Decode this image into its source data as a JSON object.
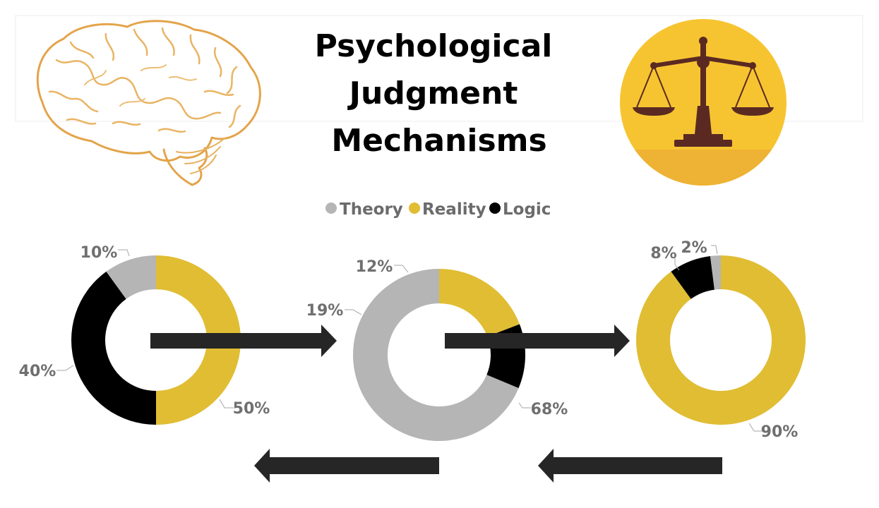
{
  "title_lines": [
    "Psychological",
    "Judgment",
    "Mechanisms"
  ],
  "colors": {
    "Theory": "#b5b5b5",
    "Reality": "#e0bd33",
    "Logic": "#000000",
    "arrow": "#262626",
    "brain": "#e3a44a",
    "scale_bg": "#f7c431",
    "scale_base": "#eeb234",
    "scale_ink": "#5a2a22"
  },
  "icons": [
    "brain-outline-icon",
    "balance-scale-icon"
  ],
  "chart_data": [
    {
      "type": "pie",
      "variant": "donut",
      "categories": [
        "Theory",
        "Reality",
        "Logic"
      ],
      "series": [
        {
          "values": [
            10,
            50,
            40
          ]
        }
      ],
      "labels": [
        "10%",
        "50%",
        "40%"
      ],
      "legend": {
        "entries": [
          "Theory",
          "Reality",
          "Logic"
        ],
        "position": "top"
      }
    },
    {
      "type": "pie",
      "variant": "donut",
      "categories": [
        "Theory",
        "Reality",
        "Logic"
      ],
      "series": [
        {
          "values": [
            68,
            19,
            12
          ]
        }
      ],
      "labels": [
        "68%",
        "19%",
        "12%"
      ]
    },
    {
      "type": "pie",
      "variant": "donut",
      "categories": [
        "Theory",
        "Reality",
        "Logic"
      ],
      "series": [
        {
          "values": [
            2,
            90,
            8
          ]
        }
      ],
      "labels": [
        "2%",
        "90%",
        "8%"
      ]
    }
  ]
}
